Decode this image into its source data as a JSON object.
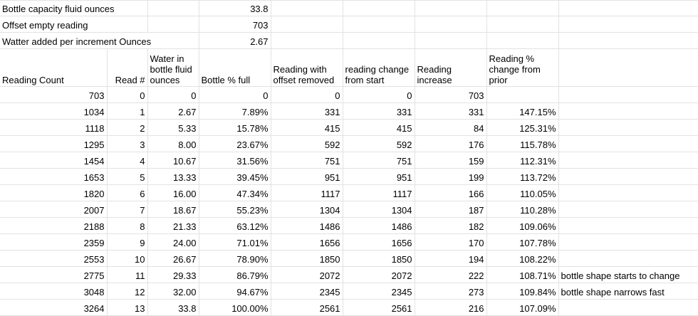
{
  "params": [
    {
      "label": "Bottle capacity fluid ounces",
      "value": "33.8"
    },
    {
      "label": "Offset empty reading",
      "value": "703"
    },
    {
      "label": "Watter added per increment Ounces",
      "value": "2.67"
    }
  ],
  "headers": {
    "reading_count": "Reading Count",
    "read_num": "Read #",
    "water": "Water in bottle fluid ounces",
    "pct_full": "Bottle % full",
    "offset_removed": "Reading with offset removed",
    "change_from_start": "reading change from start",
    "increase": "Reading increase",
    "pct_change": "Reading % change from prior"
  },
  "rows": [
    {
      "count": "703",
      "read": "0",
      "water": "0",
      "pct": "0",
      "offset": "0",
      "change": "0",
      "increase": "703",
      "pctchg": "",
      "note": ""
    },
    {
      "count": "1034",
      "read": "1",
      "water": "2.67",
      "pct": "7.89%",
      "offset": "331",
      "change": "331",
      "increase": "331",
      "pctchg": "147.15%",
      "note": ""
    },
    {
      "count": "1118",
      "read": "2",
      "water": "5.33",
      "pct": "15.78%",
      "offset": "415",
      "change": "415",
      "increase": "84",
      "pctchg": "125.31%",
      "note": ""
    },
    {
      "count": "1295",
      "read": "3",
      "water": "8.00",
      "pct": "23.67%",
      "offset": "592",
      "change": "592",
      "increase": "176",
      "pctchg": "115.78%",
      "note": ""
    },
    {
      "count": "1454",
      "read": "4",
      "water": "10.67",
      "pct": "31.56%",
      "offset": "751",
      "change": "751",
      "increase": "159",
      "pctchg": "112.31%",
      "note": ""
    },
    {
      "count": "1653",
      "read": "5",
      "water": "13.33",
      "pct": "39.45%",
      "offset": "951",
      "change": "951",
      "increase": "199",
      "pctchg": "113.72%",
      "note": ""
    },
    {
      "count": "1820",
      "read": "6",
      "water": "16.00",
      "pct": "47.34%",
      "offset": "1117",
      "change": "1117",
      "increase": "166",
      "pctchg": "110.05%",
      "note": ""
    },
    {
      "count": "2007",
      "read": "7",
      "water": "18.67",
      "pct": "55.23%",
      "offset": "1304",
      "change": "1304",
      "increase": "187",
      "pctchg": "110.28%",
      "note": ""
    },
    {
      "count": "2188",
      "read": "8",
      "water": "21.33",
      "pct": "63.12%",
      "offset": "1486",
      "change": "1486",
      "increase": "182",
      "pctchg": "109.06%",
      "note": ""
    },
    {
      "count": "2359",
      "read": "9",
      "water": "24.00",
      "pct": "71.01%",
      "offset": "1656",
      "change": "1656",
      "increase": "170",
      "pctchg": "107.78%",
      "note": ""
    },
    {
      "count": "2553",
      "read": "10",
      "water": "26.67",
      "pct": "78.90%",
      "offset": "1850",
      "change": "1850",
      "increase": "194",
      "pctchg": "108.22%",
      "note": ""
    },
    {
      "count": "2775",
      "read": "11",
      "water": "29.33",
      "pct": "86.79%",
      "offset": "2072",
      "change": "2072",
      "increase": "222",
      "pctchg": "108.71%",
      "note": "bottle shape starts to change"
    },
    {
      "count": "3048",
      "read": "12",
      "water": "32.00",
      "pct": "94.67%",
      "offset": "2345",
      "change": "2345",
      "increase": "273",
      "pctchg": "109.84%",
      "note": "bottle shape narrows fast"
    },
    {
      "count": "3264",
      "read": "13",
      "water": "33.8",
      "pct": "100.00%",
      "offset": "2561",
      "change": "2561",
      "increase": "216",
      "pctchg": "107.09%",
      "note": ""
    }
  ]
}
